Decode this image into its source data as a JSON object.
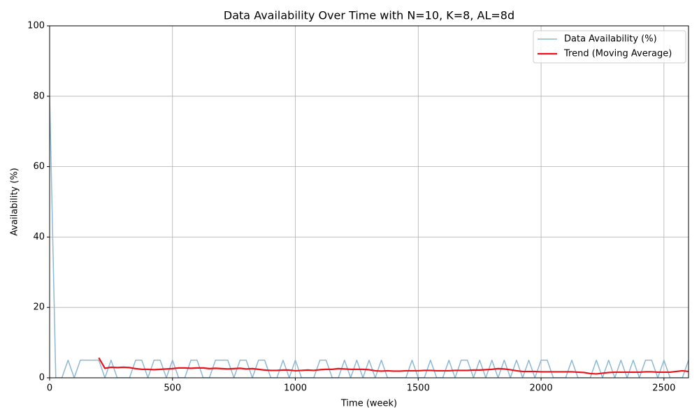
{
  "chart_data": {
    "type": "line",
    "title": "Data Availability Over Time with N=10, K=8, AL=8d",
    "x_label": "Time (week)",
    "y_label": "Availability (%)",
    "x": [
      0,
      25,
      50,
      75,
      100,
      125,
      150,
      175,
      200,
      225,
      250,
      275,
      300,
      325,
      350,
      375,
      400,
      425,
      450,
      475,
      500,
      525,
      550,
      575,
      600,
      625,
      650,
      675,
      700,
      725,
      750,
      775,
      800,
      825,
      850,
      875,
      900,
      925,
      950,
      975,
      1000,
      1025,
      1050,
      1075,
      1100,
      1125,
      1150,
      1175,
      1200,
      1225,
      1250,
      1275,
      1300,
      1325,
      1350,
      1375,
      1400,
      1425,
      1450,
      1475,
      1500,
      1525,
      1550,
      1575,
      1600,
      1625,
      1650,
      1675,
      1700,
      1725,
      1750,
      1775,
      1800,
      1825,
      1850,
      1875,
      1900,
      1925,
      1950,
      1975,
      2000,
      2025,
      2050,
      2075,
      2100,
      2125,
      2150,
      2175,
      2200,
      2225,
      2250,
      2275,
      2300,
      2325,
      2350,
      2375,
      2400,
      2425,
      2450,
      2475,
      2500,
      2525,
      2550,
      2575,
      2600
    ],
    "series": [
      {
        "name": "Data Availability (%)",
        "color": "#8db8d6",
        "width": 1.5,
        "values": [
          80,
          0,
          0,
          5,
          0,
          5,
          5,
          5,
          5,
          0,
          5,
          0,
          0,
          0,
          5,
          5,
          0,
          5,
          5,
          0,
          5,
          0,
          0,
          5,
          5,
          0,
          0,
          5,
          5,
          5,
          0,
          5,
          5,
          0,
          5,
          5,
          0,
          0,
          5,
          0,
          5,
          0,
          0,
          0,
          5,
          5,
          0,
          0,
          5,
          0,
          5,
          0,
          5,
          0,
          5,
          0,
          0,
          0,
          0,
          5,
          0,
          0,
          5,
          0,
          0,
          5,
          0,
          5,
          5,
          0,
          5,
          0,
          5,
          0,
          5,
          0,
          5,
          0,
          5,
          0,
          5,
          5,
          0,
          0,
          0,
          5,
          0,
          0,
          0,
          5,
          0,
          5,
          0,
          5,
          0,
          5,
          0,
          5,
          5,
          0,
          5,
          0,
          0,
          0,
          5
        ]
      },
      {
        "name": "Trend (Moving Average)",
        "color": "#e8141a",
        "width": 2.2,
        "values": [
          null,
          null,
          null,
          null,
          null,
          null,
          null,
          null,
          5.7,
          2.7,
          3.0,
          2.9,
          3.0,
          2.9,
          2.6,
          2.4,
          2.4,
          2.3,
          2.4,
          2.5,
          2.6,
          2.8,
          2.8,
          2.7,
          2.8,
          2.8,
          2.6,
          2.7,
          2.6,
          2.5,
          2.6,
          2.7,
          2.5,
          2.6,
          2.4,
          2.2,
          2.1,
          2.1,
          2.2,
          2.2,
          2.0,
          2.1,
          2.2,
          2.1,
          2.3,
          2.4,
          2.4,
          2.6,
          2.5,
          2.4,
          2.4,
          2.4,
          2.3,
          2.0,
          1.9,
          2.0,
          1.9,
          1.9,
          2.0,
          2.0,
          2.0,
          2.1,
          2.1,
          2.0,
          2.0,
          2.0,
          2.1,
          2.1,
          2.1,
          2.2,
          2.2,
          2.3,
          2.4,
          2.6,
          2.5,
          2.3,
          2.0,
          1.8,
          1.8,
          1.8,
          1.7,
          1.7,
          1.7,
          1.7,
          1.7,
          1.7,
          1.6,
          1.5,
          1.2,
          1.1,
          1.3,
          1.5,
          1.6,
          1.6,
          1.6,
          1.6,
          1.6,
          1.7,
          1.7,
          1.6,
          1.6,
          1.6,
          1.8,
          2.0,
          1.8
        ]
      }
    ],
    "xlim": [
      0,
      2600
    ],
    "ylim": [
      0,
      100
    ],
    "xticks": [
      0,
      500,
      1000,
      1500,
      2000,
      2500
    ],
    "yticks": [
      0,
      20,
      40,
      60,
      80,
      100
    ],
    "grid": true,
    "legend": "upper right"
  }
}
